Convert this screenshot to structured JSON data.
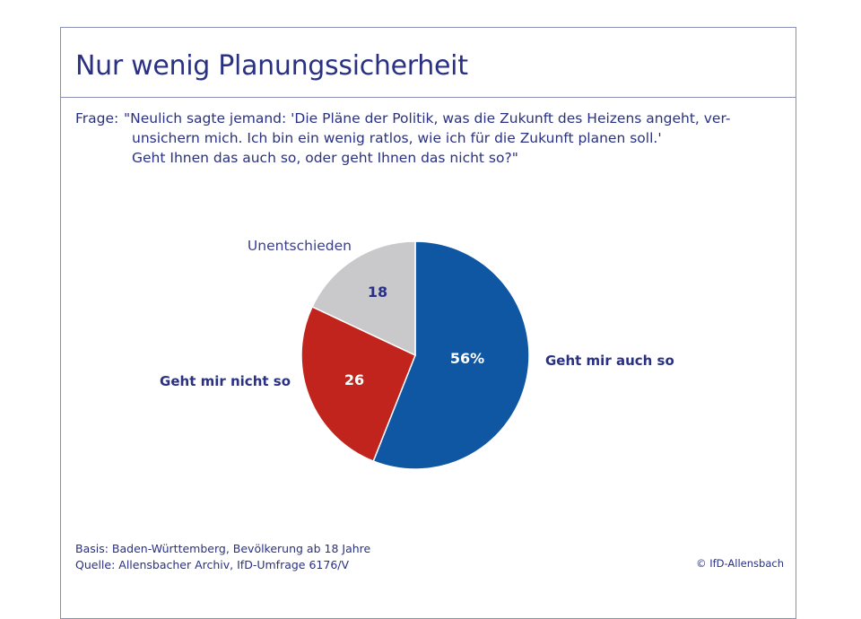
{
  "title": "Nur wenig Planungssicherheit",
  "question": {
    "prefix": "Frage:",
    "lines": [
      "\"Neulich sagte jemand: 'Die Pläne der Politik, was die Zukunft des Heizens angeht, ver-",
      "unsichern mich. Ich bin ein wenig ratlos, wie ich für die Zukunft planen soll.'",
      "Geht Ihnen das auch so, oder geht Ihnen das nicht so?\""
    ]
  },
  "chart_data": {
    "type": "pie",
    "unit": "%",
    "slices": [
      {
        "label": "Geht mir auch so",
        "value": 56,
        "display": "56%",
        "color": "#0f56a3",
        "text_color": "#ffffff"
      },
      {
        "label": "Geht mir nicht so",
        "value": 26,
        "display": "26",
        "color": "#c1241c",
        "text_color": "#ffffff"
      },
      {
        "label": "Unentschieden",
        "value": 18,
        "display": "18",
        "color": "#c9c9cb",
        "text_color": "#2a3183"
      }
    ]
  },
  "footer": {
    "basis": "Basis: Baden-Württemberg, Bevölkerung ab 18 Jahre",
    "source": "Quelle: Allensbacher Archiv, IfD-Umfrage 6176/V",
    "copyright": "© IfD-Allensbach"
  }
}
